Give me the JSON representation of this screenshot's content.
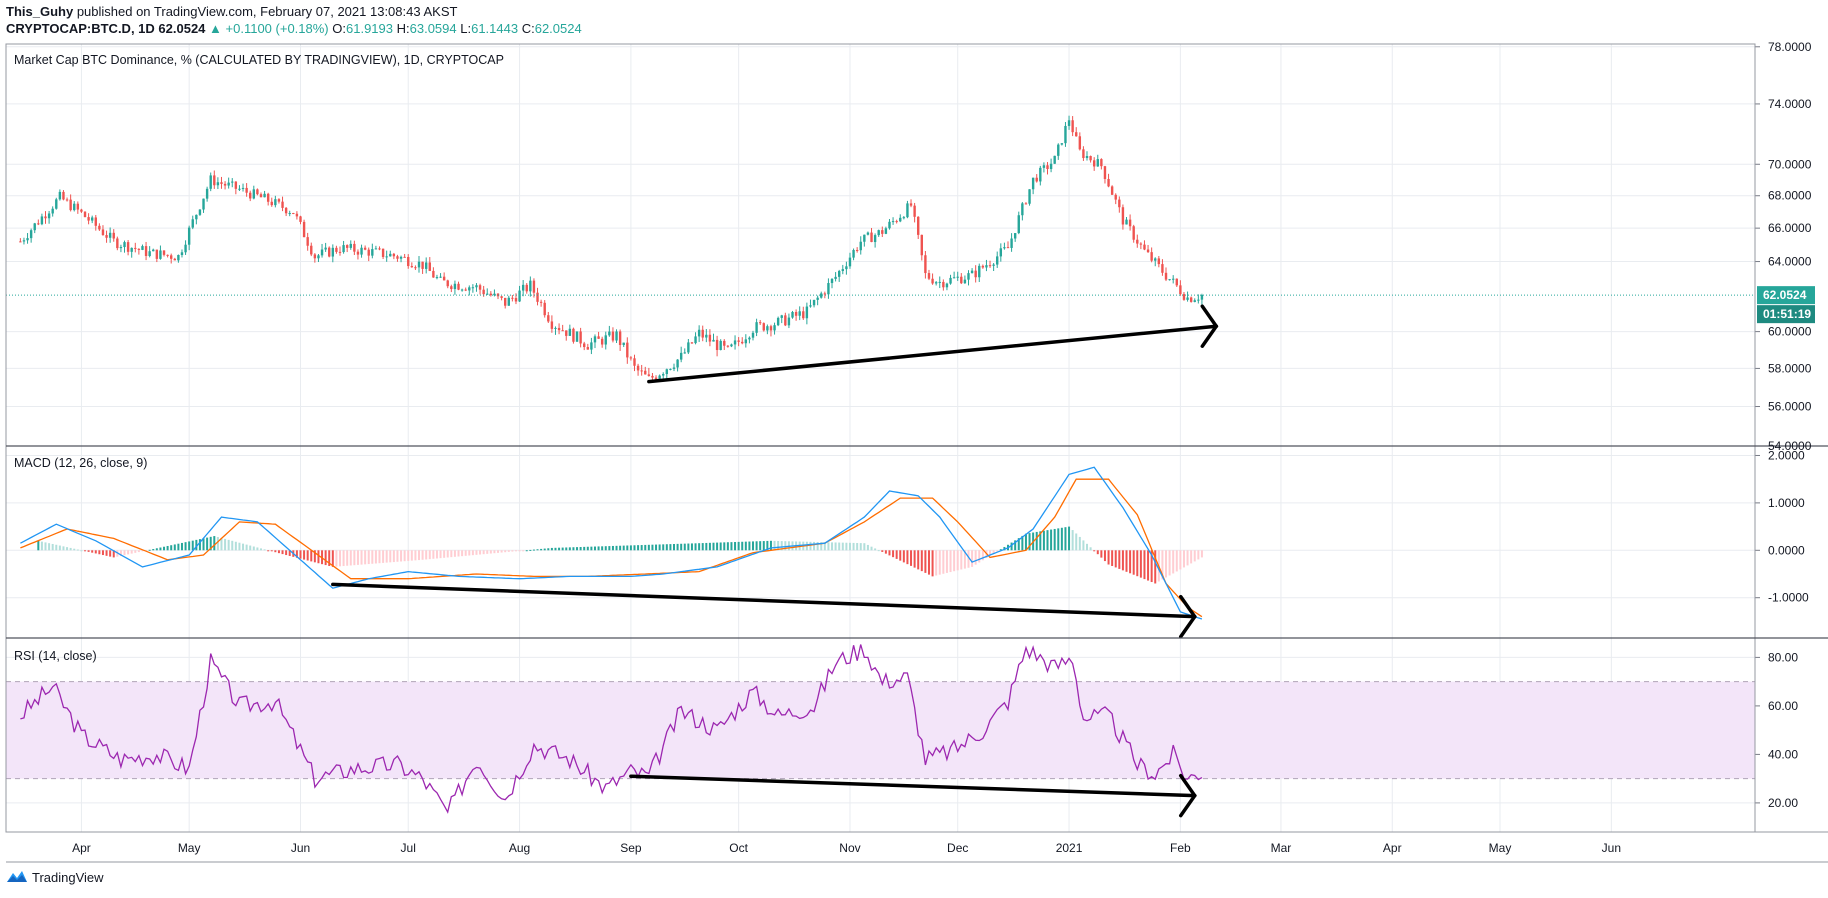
{
  "header": {
    "author": "This_Guhy",
    "published_text": "published on TradingView.com, February 07, 2021 13:08:43 AKST",
    "symbol": "CRYPTOCAP:BTC.D, 1D",
    "last": "62.0524",
    "change": "▲ +0.1100 (+0.18%)",
    "o_label": "O:",
    "o_value": "61.9193",
    "h_label": "H:",
    "h_value": "63.0594",
    "l_label": "L:",
    "l_value": "61.1443",
    "c_label": "C:",
    "c_value": "62.0524"
  },
  "footer": {
    "brand": "TradingView",
    "logo_icon": "tradingview-logo-icon"
  },
  "colors": {
    "up": "#26a69a",
    "down": "#ef5350",
    "macd": "#2196f3",
    "signal": "#ff6d00",
    "rsi": "#9c27b0",
    "rsi_band": "#f3e5f9",
    "grid": "#e9ecf0",
    "trendline": "#000000"
  },
  "chart_data": [
    {
      "type": "candlestick",
      "title": "Market Cap BTC Dominance, % (CALCULATED BY TRADINGVIEW), 1D, CRYPTOCAP",
      "xlabel": "",
      "ylabel": "",
      "x_tick_labels": [
        "Apr",
        "May",
        "Jun",
        "Jul",
        "Aug",
        "Sep",
        "Oct",
        "Nov",
        "Dec",
        "2021",
        "Feb",
        "Mar",
        "Apr",
        "May",
        "Jun"
      ],
      "y_tick_labels": [
        "54.0000",
        "56.0000",
        "58.0000",
        "60.0000",
        "64.0000",
        "66.0000",
        "68.0000",
        "70.0000",
        "74.0000",
        "78.0000"
      ],
      "y_ticks": [
        54,
        56,
        58,
        60,
        64,
        66,
        68,
        70,
        74,
        78
      ],
      "log_scale": true,
      "ylim": [
        54,
        78.2
      ],
      "grid": true,
      "last_price_label": "62.0524",
      "last_price": 62.05,
      "countdown_label": "01:51:19",
      "close_path": {
        "dates": [
          "2020-03-15",
          "2020-03-26",
          "2020-04-01",
          "2020-04-10",
          "2020-04-20",
          "2020-04-28",
          "2020-05-07",
          "2020-05-15",
          "2020-05-22",
          "2020-05-30",
          "2020-06-05",
          "2020-06-12",
          "2020-06-20",
          "2020-06-28",
          "2020-07-05",
          "2020-07-10",
          "2020-07-20",
          "2020-07-28",
          "2020-08-04",
          "2020-08-10",
          "2020-08-20",
          "2020-08-28",
          "2020-09-02",
          "2020-09-06",
          "2020-09-15",
          "2020-09-20",
          "2020-09-28",
          "2020-10-05",
          "2020-10-12",
          "2020-10-20",
          "2020-10-28",
          "2020-11-04",
          "2020-11-10",
          "2020-11-18",
          "2020-11-22",
          "2020-11-26",
          "2020-12-05",
          "2020-12-15",
          "2020-12-22",
          "2020-12-28",
          "2021-01-01",
          "2021-01-04",
          "2021-01-10",
          "2021-01-16",
          "2021-01-22",
          "2021-01-28",
          "2021-02-03",
          "2021-02-07"
        ],
        "values": [
          65.2,
          67.9,
          66.9,
          65.2,
          64.5,
          64.3,
          69.0,
          68.4,
          67.8,
          67.0,
          64.3,
          64.8,
          64.6,
          64.3,
          63.8,
          62.8,
          62.5,
          61.6,
          62.6,
          60.5,
          59.3,
          59.8,
          58.0,
          57.4,
          58.6,
          59.9,
          58.9,
          60.2,
          60.5,
          61.1,
          63.1,
          65.2,
          65.8,
          67.4,
          63.2,
          62.8,
          63.2,
          64.8,
          69.0,
          70.3,
          73.0,
          70.8,
          69.9,
          66.5,
          64.6,
          63.2,
          61.9,
          62.05
        ]
      },
      "annotations": [
        {
          "type": "trendline",
          "from": {
            "date": "2020-09-06",
            "value": 57.3
          },
          "to": {
            "date": "2021-02-11",
            "value": 60.3
          }
        }
      ]
    },
    {
      "type": "line",
      "title": "MACD (12, 26, close, 9)",
      "xlabel": "",
      "ylabel": "",
      "y_tick_labels": [
        "-1.0000",
        "0.0000",
        "1.0000",
        "2.0000"
      ],
      "y_ticks": [
        -1,
        0,
        1,
        2
      ],
      "ylim": [
        -1.85,
        2.2
      ],
      "series": [
        {
          "name": "MACD",
          "color": "#2196f3",
          "dates": [
            "2020-03-15",
            "2020-03-25",
            "2020-04-05",
            "2020-04-18",
            "2020-05-01",
            "2020-05-10",
            "2020-05-20",
            "2020-06-01",
            "2020-06-10",
            "2020-06-20",
            "2020-07-01",
            "2020-07-15",
            "2020-08-01",
            "2020-08-15",
            "2020-09-01",
            "2020-09-10",
            "2020-09-25",
            "2020-10-10",
            "2020-10-25",
            "2020-11-05",
            "2020-11-12",
            "2020-11-20",
            "2020-11-26",
            "2020-12-05",
            "2020-12-15",
            "2020-12-22",
            "2021-01-01",
            "2021-01-08",
            "2021-01-16",
            "2021-01-24",
            "2021-02-01",
            "2021-02-07"
          ],
          "values": [
            0.15,
            0.55,
            0.2,
            -0.35,
            -0.1,
            0.7,
            0.6,
            -0.2,
            -0.8,
            -0.6,
            -0.45,
            -0.55,
            -0.6,
            -0.55,
            -0.55,
            -0.5,
            -0.35,
            0.05,
            0.15,
            0.7,
            1.25,
            1.15,
            0.7,
            -0.25,
            0.05,
            0.45,
            1.6,
            1.75,
            0.9,
            -0.1,
            -1.3,
            -1.45
          ]
        },
        {
          "name": "Signal",
          "color": "#ff6d00",
          "dates": [
            "2020-03-15",
            "2020-03-28",
            "2020-04-10",
            "2020-04-25",
            "2020-05-05",
            "2020-05-15",
            "2020-05-25",
            "2020-06-05",
            "2020-06-15",
            "2020-07-01",
            "2020-07-20",
            "2020-08-05",
            "2020-08-20",
            "2020-09-05",
            "2020-09-20",
            "2020-10-05",
            "2020-10-25",
            "2020-11-05",
            "2020-11-15",
            "2020-11-24",
            "2020-12-01",
            "2020-12-10",
            "2020-12-20",
            "2020-12-28",
            "2021-01-03",
            "2021-01-12",
            "2021-01-20",
            "2021-01-28",
            "2021-02-03",
            "2021-02-07"
          ],
          "values": [
            0.05,
            0.45,
            0.25,
            -0.2,
            -0.1,
            0.6,
            0.55,
            -0.05,
            -0.6,
            -0.6,
            -0.5,
            -0.55,
            -0.55,
            -0.5,
            -0.45,
            -0.05,
            0.15,
            0.6,
            1.1,
            1.1,
            0.6,
            -0.15,
            0.0,
            0.7,
            1.5,
            1.5,
            0.75,
            -0.7,
            -1.2,
            -1.4
          ]
        },
        {
          "name": "Histogram",
          "type": "bar",
          "colors": [
            "#26a69a",
            "#ef5350"
          ],
          "dates": [
            "2020-03-20",
            "2020-04-10",
            "2020-05-08",
            "2020-05-28",
            "2020-06-10",
            "2020-07-05",
            "2020-08-10",
            "2020-09-20",
            "2020-10-10",
            "2020-11-05",
            "2020-11-24",
            "2020-12-05",
            "2020-12-20",
            "2021-01-01",
            "2021-01-12",
            "2021-01-25",
            "2021-02-07"
          ],
          "values": [
            0.2,
            -0.15,
            0.3,
            -0.1,
            -0.35,
            -0.2,
            0.05,
            0.15,
            0.2,
            0.15,
            -0.55,
            -0.35,
            0.35,
            0.5,
            -0.3,
            -0.7,
            -0.15
          ]
        }
      ],
      "annotations": [
        {
          "type": "trendline",
          "from": {
            "date": "2020-06-10",
            "value": -0.72
          },
          "to": {
            "date": "2021-02-05",
            "value": -1.4
          }
        }
      ]
    },
    {
      "type": "line",
      "title": "RSI (14, close)",
      "xlabel": "",
      "ylabel": "",
      "y_tick_labels": [
        "20.00",
        "40.00",
        "60.00",
        "80.00"
      ],
      "y_ticks": [
        20,
        40,
        60,
        80
      ],
      "ylim": [
        8,
        88
      ],
      "band": [
        30,
        70
      ],
      "series": [
        {
          "name": "RSI",
          "color": "#9c27b0",
          "dates": [
            "2020-03-15",
            "2020-03-24",
            "2020-04-01",
            "2020-04-12",
            "2020-04-22",
            "2020-05-01",
            "2020-05-07",
            "2020-05-15",
            "2020-05-25",
            "2020-06-05",
            "2020-06-15",
            "2020-06-28",
            "2020-07-05",
            "2020-07-12",
            "2020-07-20",
            "2020-07-28",
            "2020-08-05",
            "2020-08-15",
            "2020-08-25",
            "2020-09-01",
            "2020-09-06",
            "2020-09-15",
            "2020-09-25",
            "2020-10-05",
            "2020-10-12",
            "2020-10-22",
            "2020-10-28",
            "2020-11-05",
            "2020-11-10",
            "2020-11-17",
            "2020-11-22",
            "2020-11-30",
            "2020-12-08",
            "2020-12-15",
            "2020-12-20",
            "2020-12-28",
            "2021-01-02",
            "2021-01-05",
            "2021-01-12",
            "2021-01-20",
            "2021-01-25",
            "2021-01-30",
            "2021-02-03",
            "2021-02-07"
          ],
          "values": [
            56,
            68,
            48,
            38,
            40,
            34,
            78,
            60,
            62,
            30,
            34,
            36,
            30,
            16,
            38,
            22,
            44,
            38,
            26,
            33,
            31,
            58,
            50,
            66,
            56,
            60,
            78,
            84,
            70,
            72,
            38,
            42,
            50,
            62,
            84,
            76,
            80,
            55,
            56,
            36,
            32,
            40,
            30,
            33
          ]
        }
      ],
      "annotations": [
        {
          "type": "trendline",
          "from": {
            "date": "2020-09-01",
            "value": 31
          },
          "to": {
            "date": "2021-02-05",
            "value": 23
          }
        }
      ]
    }
  ]
}
